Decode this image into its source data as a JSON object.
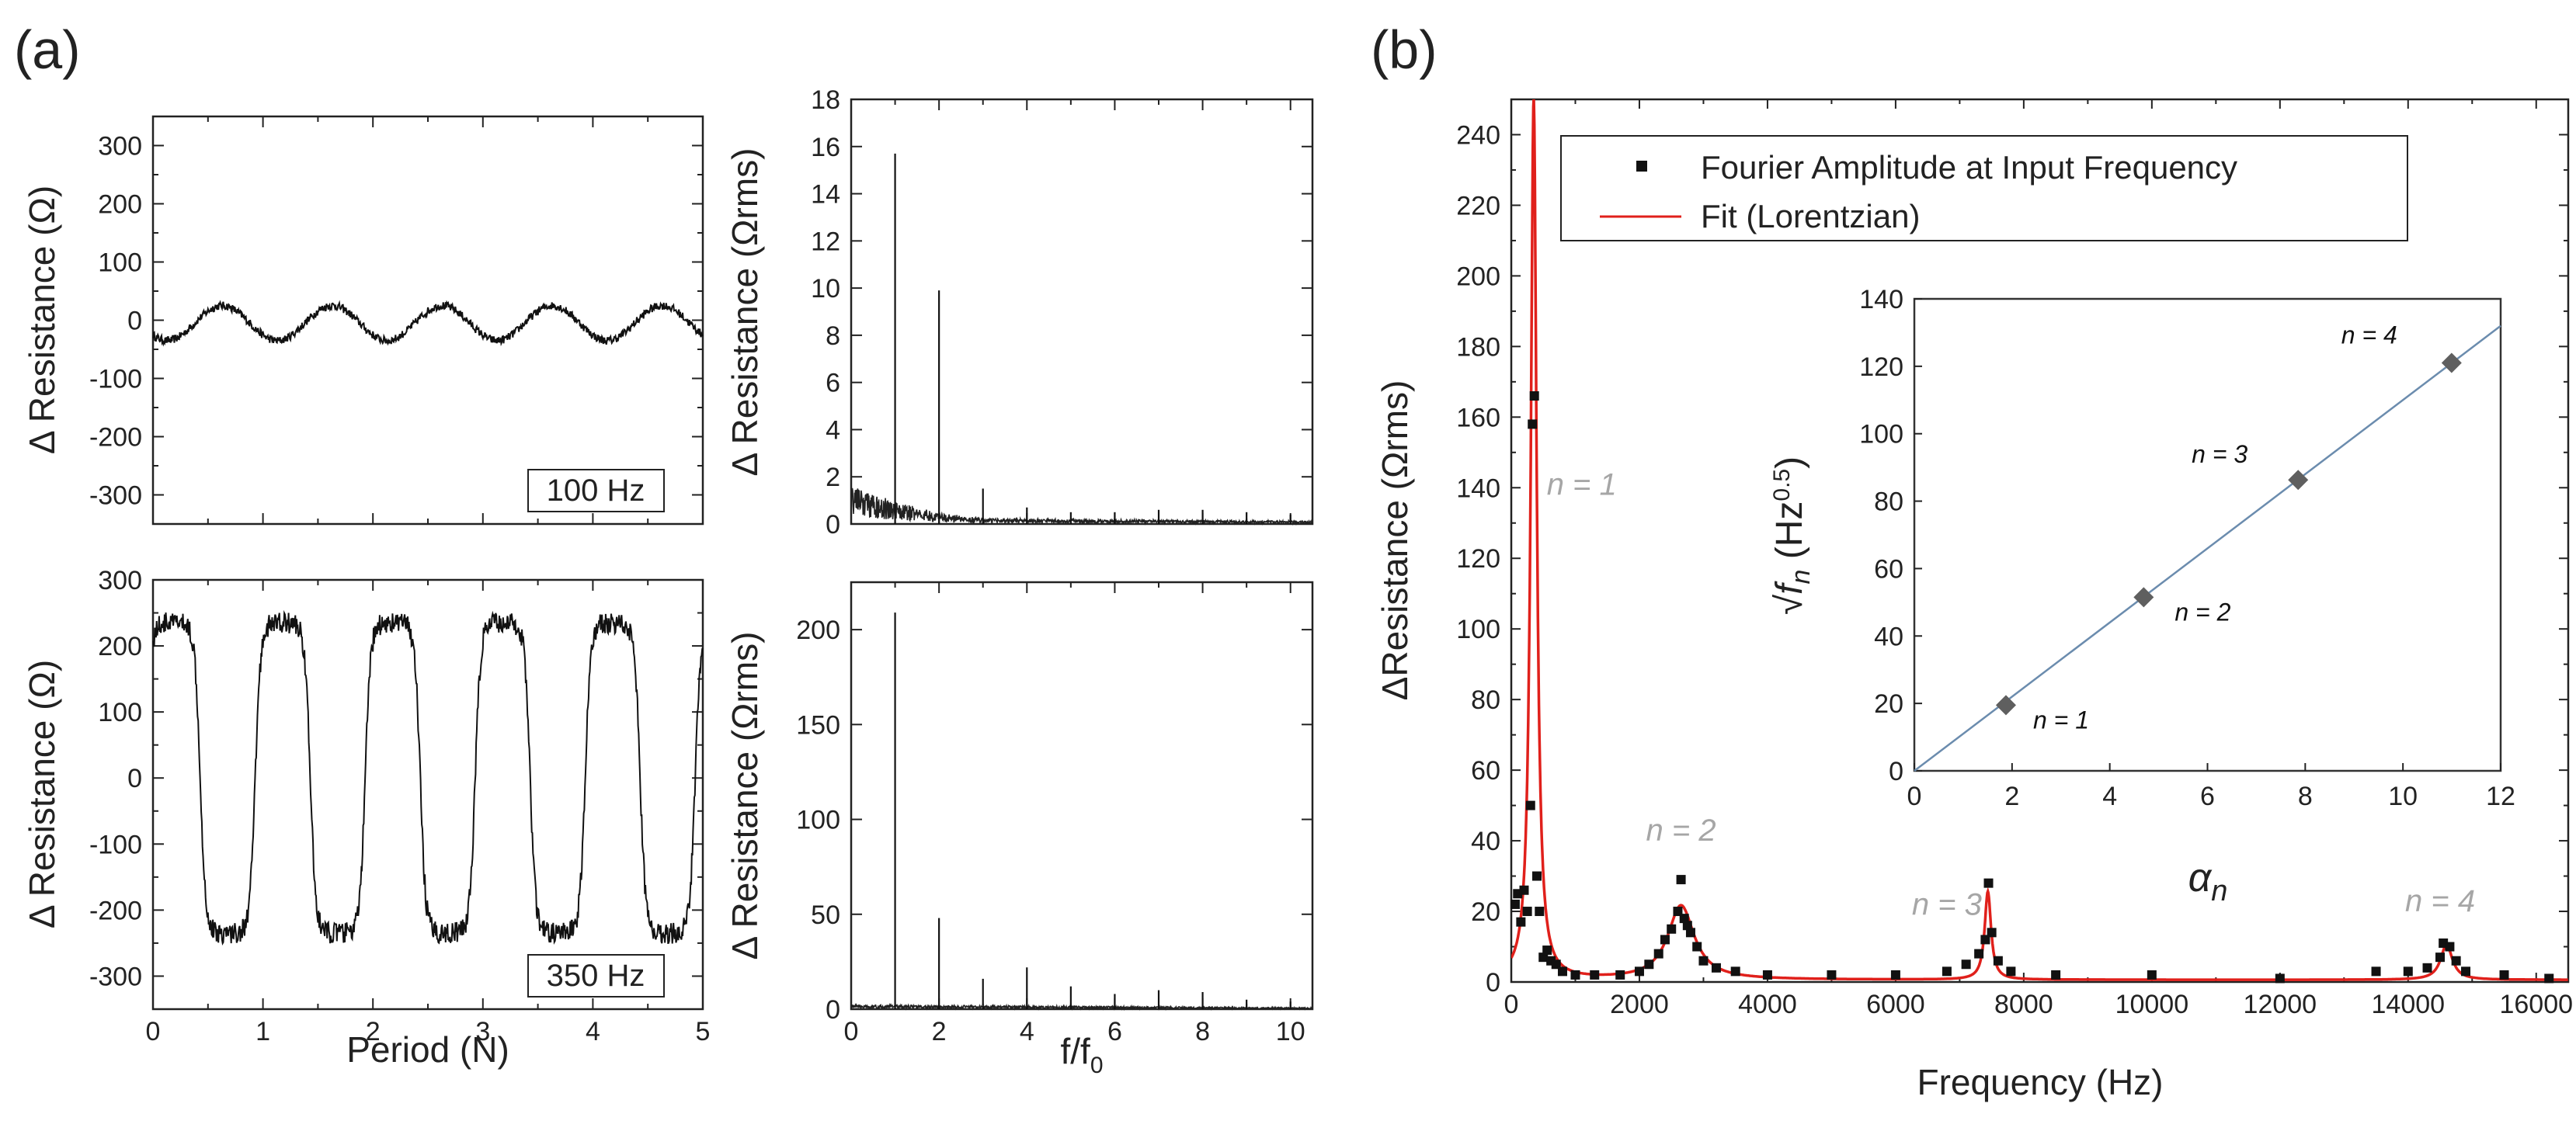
{
  "panel_labels": {
    "a": "(a)",
    "b": "(b)"
  },
  "chart_data": [
    {
      "id": "a1",
      "type": "line",
      "title": "",
      "annotation": "100 Hz",
      "xlabel": "",
      "ylabel": "Δ Resistance (Ω)",
      "xlim": [
        0,
        5
      ],
      "ylim": [
        -350,
        350
      ],
      "xticks": [
        0,
        1,
        2,
        3,
        4,
        5
      ],
      "xtick_labels": [
        "",
        "",
        "",
        "",
        "",
        ""
      ],
      "yticks": [
        -300,
        -200,
        -100,
        0,
        100,
        200,
        300
      ],
      "ytick_labels": [
        "-300",
        "-200",
        "-100",
        "0",
        "100",
        "200",
        "300"
      ],
      "series": [
        {
          "name": "100 Hz signal",
          "color": "#111111",
          "shape": "sine",
          "mean": -5,
          "amplitude": 30,
          "cycles": 5,
          "phase": 0.62,
          "noise": 7
        }
      ]
    },
    {
      "id": "a2",
      "type": "bar",
      "xlabel": "",
      "ylabel": "Δ Resistance (Ωrms)",
      "xlim": [
        0,
        10.5
      ],
      "ylim": [
        0,
        18
      ],
      "xticks": [
        0,
        2,
        4,
        6,
        8,
        10
      ],
      "xtick_labels": [
        "",
        "",
        "",
        "",
        "",
        ""
      ],
      "yticks": [
        0,
        2,
        4,
        6,
        8,
        10,
        12,
        14,
        16,
        18
      ],
      "ytick_labels": [
        "0",
        "2",
        "4",
        "6",
        "8",
        "10",
        "12",
        "14",
        "16",
        "18"
      ],
      "peaks": [
        [
          1,
          15.7
        ],
        [
          2,
          9.9
        ],
        [
          3,
          1.5
        ],
        [
          4,
          0.7
        ],
        [
          5,
          0.5
        ],
        [
          6,
          0.5
        ],
        [
          7,
          0.6
        ],
        [
          8,
          0.6
        ],
        [
          9,
          0.5
        ],
        [
          10,
          0.4
        ]
      ],
      "baseline": [
        [
          0,
          1.0
        ],
        [
          1,
          0.6
        ],
        [
          2,
          0.3
        ],
        [
          3,
          0.15
        ],
        [
          10.5,
          0.08
        ]
      ]
    },
    {
      "id": "a3",
      "type": "line",
      "annotation": "350 Hz",
      "xlabel": "Period (N)",
      "ylabel": "Δ Resistance (Ω)",
      "xlim": [
        0,
        5
      ],
      "ylim": [
        -350,
        300
      ],
      "xticks": [
        0,
        1,
        2,
        3,
        4,
        5
      ],
      "xtick_labels": [
        "0",
        "1",
        "2",
        "3",
        "4",
        "5"
      ],
      "yticks": [
        -300,
        -200,
        -100,
        0,
        100,
        200,
        300
      ],
      "ytick_labels": [
        "-300",
        "-200",
        "-100",
        "0",
        "100",
        "200",
        "300"
      ],
      "series": [
        {
          "name": "350 Hz signal",
          "color": "#111111",
          "shape": "square",
          "mean": 0,
          "amplitude": 235,
          "cycles": 5,
          "phase": 0.07,
          "noise": 16
        }
      ]
    },
    {
      "id": "a4",
      "type": "bar",
      "xlabel": "f/f0",
      "ylabel": "Δ Resistance (Ωrms)",
      "xlim": [
        0,
        10.5
      ],
      "ylim": [
        0,
        225
      ],
      "xticks": [
        0,
        2,
        4,
        6,
        8,
        10
      ],
      "xtick_labels": [
        "0",
        "2",
        "4",
        "6",
        "8",
        "10"
      ],
      "yticks": [
        0,
        50,
        100,
        150,
        200
      ],
      "ytick_labels": [
        "0",
        "50",
        "100",
        "150",
        "200"
      ],
      "peaks": [
        [
          1,
          209
        ],
        [
          2,
          48
        ],
        [
          3,
          16
        ],
        [
          4,
          22
        ],
        [
          5,
          12
        ],
        [
          6,
          8
        ],
        [
          7,
          10
        ],
        [
          8,
          9
        ],
        [
          9,
          5
        ],
        [
          10,
          4
        ]
      ],
      "baseline": [
        [
          0,
          1.5
        ],
        [
          10.5,
          0.5
        ]
      ]
    },
    {
      "id": "b",
      "type": "scatter",
      "xlabel": "Frequency (Hz)",
      "ylabel": "ΔResistance (Ωrms)",
      "xlim": [
        0,
        16500
      ],
      "ylim": [
        0,
        250
      ],
      "xticks": [
        0,
        2000,
        4000,
        6000,
        8000,
        10000,
        12000,
        14000,
        16000
      ],
      "xtick_labels": [
        "0",
        "2000",
        "4000",
        "6000",
        "8000",
        "10000",
        "12000",
        "14000",
        "16000"
      ],
      "yticks": [
        0,
        20,
        40,
        60,
        80,
        100,
        120,
        140,
        160,
        180,
        200,
        220,
        240
      ],
      "ytick_labels": [
        "0",
        "20",
        "40",
        "60",
        "80",
        "100",
        "120",
        "140",
        "160",
        "180",
        "200",
        "220",
        "240"
      ],
      "legend": [
        {
          "label": "Fourier Amplitude at Input Frequency",
          "marker": "square",
          "color": "#111111"
        },
        {
          "label": "Fit (Lorentzian)",
          "marker": "line",
          "color": "#e0201b"
        }
      ],
      "points": [
        [
          60,
          22
        ],
        [
          100,
          25
        ],
        [
          150,
          17
        ],
        [
          200,
          26
        ],
        [
          250,
          20
        ],
        [
          300,
          50
        ],
        [
          330,
          158
        ],
        [
          360,
          166
        ],
        [
          400,
          30
        ],
        [
          440,
          20
        ],
        [
          500,
          7
        ],
        [
          560,
          9
        ],
        [
          620,
          6
        ],
        [
          700,
          5
        ],
        [
          800,
          3
        ],
        [
          1000,
          2
        ],
        [
          1300,
          2
        ],
        [
          1700,
          2
        ],
        [
          2000,
          3
        ],
        [
          2150,
          5
        ],
        [
          2300,
          8
        ],
        [
          2400,
          12
        ],
        [
          2500,
          15
        ],
        [
          2600,
          20
        ],
        [
          2650,
          29
        ],
        [
          2700,
          18
        ],
        [
          2750,
          16
        ],
        [
          2800,
          14
        ],
        [
          2900,
          10
        ],
        [
          3000,
          6
        ],
        [
          3200,
          4
        ],
        [
          3500,
          3
        ],
        [
          4000,
          2
        ],
        [
          5000,
          2
        ],
        [
          6000,
          2
        ],
        [
          6800,
          3
        ],
        [
          7100,
          5
        ],
        [
          7300,
          8
        ],
        [
          7400,
          12
        ],
        [
          7450,
          28
        ],
        [
          7500,
          14
        ],
        [
          7600,
          6
        ],
        [
          7800,
          3
        ],
        [
          8500,
          2
        ],
        [
          10000,
          2
        ],
        [
          12000,
          1
        ],
        [
          13500,
          3
        ],
        [
          14000,
          3
        ],
        [
          14300,
          4
        ],
        [
          14500,
          7
        ],
        [
          14550,
          11
        ],
        [
          14650,
          10
        ],
        [
          14750,
          6
        ],
        [
          14900,
          3
        ],
        [
          15500,
          2
        ],
        [
          16200,
          1
        ]
      ],
      "fit_peaks": [
        {
          "f0": 350,
          "amp": 250,
          "gamma": 55
        },
        {
          "f0": 2650,
          "amp": 21,
          "gamma": 250
        },
        {
          "f0": 7440,
          "amp": 25,
          "gamma": 60
        },
        {
          "f0": 14600,
          "amp": 10,
          "gamma": 110
        }
      ],
      "fit_color": "#e0201b",
      "mode_labels": [
        {
          "text": "n = 1",
          "x": 1100,
          "y": 138
        },
        {
          "text": "n = 2",
          "x": 2650,
          "y": 40
        },
        {
          "text": "n = 3",
          "x": 6800,
          "y": 19
        },
        {
          "text": "n = 4",
          "x": 14500,
          "y": 20
        }
      ]
    },
    {
      "id": "b_inset",
      "type": "scatter",
      "xlabel": "α_n",
      "ylabel": "√f_n (Hz^0.5)",
      "xlim": [
        0,
        12
      ],
      "ylim": [
        0,
        140
      ],
      "xticks": [
        0,
        2,
        4,
        6,
        8,
        10,
        12
      ],
      "xtick_labels": [
        "0",
        "2",
        "4",
        "6",
        "8",
        "10",
        "12"
      ],
      "yticks": [
        0,
        20,
        40,
        60,
        80,
        100,
        120,
        140
      ],
      "ytick_labels": [
        "0",
        "20",
        "40",
        "60",
        "80",
        "100",
        "120",
        "140"
      ],
      "marker_color": "#5f5f5f",
      "points": [
        [
          1.875,
          19.5
        ],
        [
          4.694,
          51.5
        ],
        [
          7.855,
          86.3
        ],
        [
          10.996,
          121.0
        ]
      ],
      "point_labels": [
        "n = 1",
        "n = 2",
        "n = 3",
        "n = 4"
      ],
      "fit_line": {
        "slope": 11.0,
        "intercept": 0,
        "color": "#6b8cae"
      }
    }
  ]
}
